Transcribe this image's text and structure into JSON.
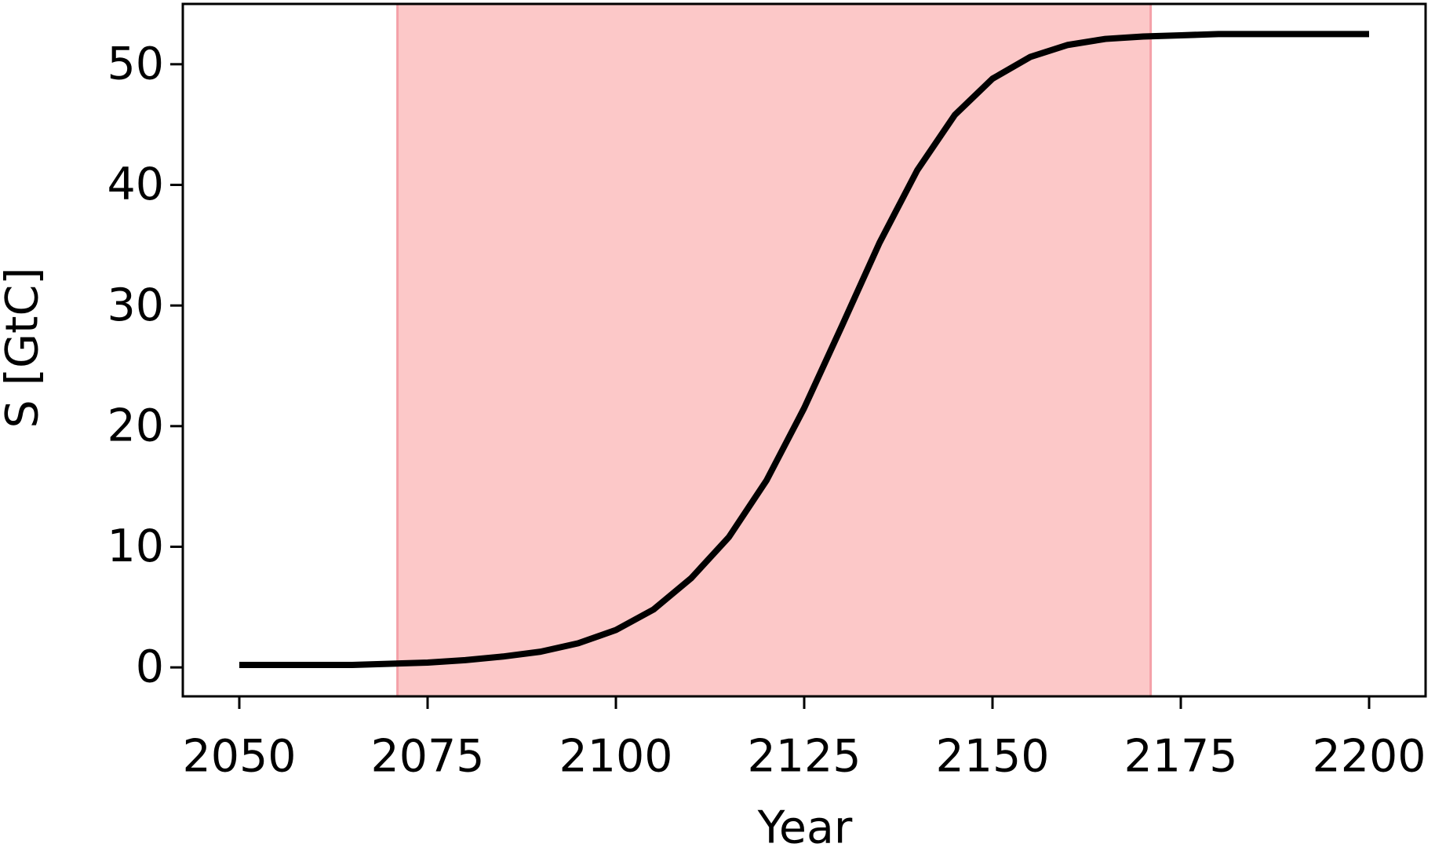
{
  "chart_data": {
    "type": "line",
    "x_label": "Year",
    "y_label": "S [GtC]",
    "x": [
      2050,
      2055,
      2060,
      2065,
      2070,
      2075,
      2080,
      2085,
      2090,
      2095,
      2100,
      2105,
      2110,
      2115,
      2120,
      2125,
      2130,
      2135,
      2140,
      2145,
      2150,
      2155,
      2160,
      2165,
      2170,
      2175,
      2180,
      2185,
      2190,
      2195,
      2200
    ],
    "series": [
      {
        "color": "#000000",
        "values": [
          0.2,
          0.2,
          0.2,
          0.2,
          0.3,
          0.4,
          0.6,
          0.9,
          1.3,
          2.0,
          3.1,
          4.8,
          7.4,
          10.8,
          15.5,
          21.5,
          28.3,
          35.2,
          41.2,
          45.8,
          48.8,
          50.6,
          51.6,
          52.1,
          52.3,
          52.4,
          52.5,
          52.5,
          52.5,
          52.5,
          52.5
        ]
      }
    ],
    "shaded_region": {
      "x": [
        2071,
        2171
      ],
      "color": "#fcc8c8",
      "edge_color": "#f4a0a8"
    },
    "xlim": [
      2042.5,
      2207.5
    ],
    "xticks": [
      2050,
      2075,
      2100,
      2125,
      2150,
      2175,
      2200
    ],
    "ylim": [
      -2.4,
      55
    ],
    "yticks": [
      0,
      10,
      20,
      30,
      40,
      50
    ]
  }
}
